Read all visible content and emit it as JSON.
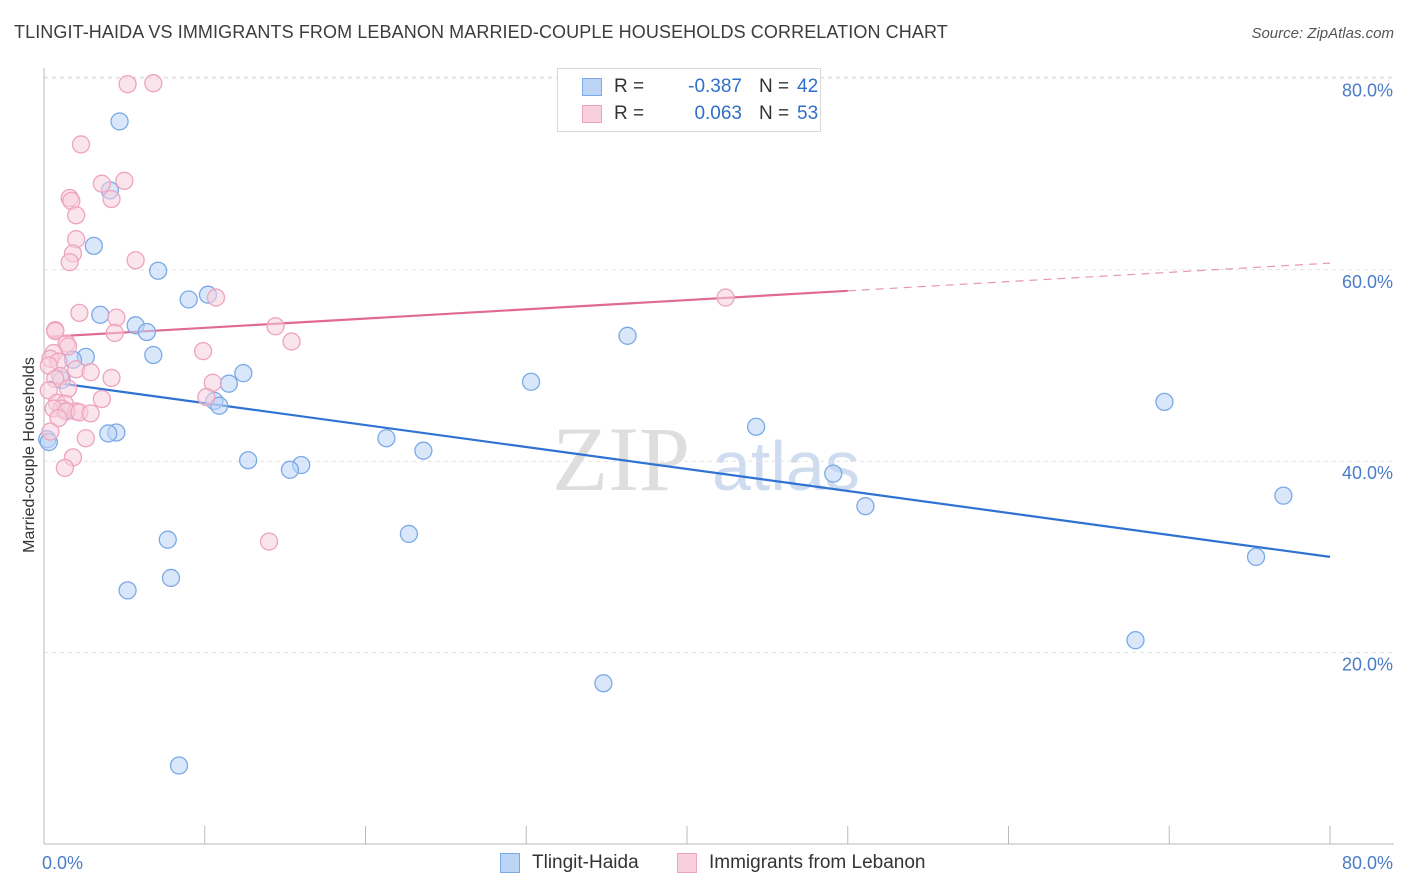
{
  "chart_data": {
    "type": "scatter",
    "title": "TLINGIT-HAIDA VS IMMIGRANTS FROM LEBANON MARRIED-COUPLE HOUSEHOLDS CORRELATION CHART",
    "source": "Source: ZipAtlas.com",
    "ylabel": "Married-couple Households",
    "xlim": [
      0,
      80
    ],
    "ylim": [
      0,
      83
    ],
    "x_tick_labels": [
      {
        "value": 0,
        "label": "0.0%"
      },
      {
        "value": 80,
        "label": "80.0%"
      }
    ],
    "y_tick_labels": [
      {
        "value": 20,
        "label": "20.0%"
      },
      {
        "value": 40,
        "label": "40.0%"
      },
      {
        "value": 60,
        "label": "60.0%"
      },
      {
        "value": 80,
        "label": "80.0%"
      }
    ],
    "watermark": {
      "zip": "ZIP",
      "atlas": "atlas"
    },
    "legend": {
      "r_label": "R =",
      "n_label": "N =",
      "entries": [
        {
          "name": "Tlingit-Haida",
          "r": "-0.387",
          "n": "42"
        },
        {
          "name": "Immigrants from Lebanon",
          "r": "0.063",
          "n": "53"
        }
      ]
    },
    "series": [
      {
        "name": "Tlingit-Haida",
        "color": "#7aaae6",
        "fill": "#bcd4f5",
        "line_color": "#2f72d4",
        "trend": {
          "x0": 0.3,
          "y0": 48.3,
          "x1": 80,
          "y1": 30.0,
          "solid_until": 80
        },
        "points": [
          [
            4.7,
            75.5
          ],
          [
            4.1,
            68.3
          ],
          [
            3.1,
            62.5
          ],
          [
            7.1,
            59.9
          ],
          [
            10.2,
            57.4
          ],
          [
            9.0,
            56.9
          ],
          [
            3.5,
            55.3
          ],
          [
            5.7,
            54.2
          ],
          [
            6.4,
            53.5
          ],
          [
            36.3,
            53.1
          ],
          [
            6.8,
            51.1
          ],
          [
            2.6,
            50.9
          ],
          [
            1.8,
            50.6
          ],
          [
            12.4,
            49.2
          ],
          [
            1.1,
            48.5
          ],
          [
            30.3,
            48.3
          ],
          [
            11.5,
            48.1
          ],
          [
            10.6,
            46.3
          ],
          [
            10.9,
            45.8
          ],
          [
            1.3,
            45.3
          ],
          [
            69.7,
            46.2
          ],
          [
            44.3,
            43.6
          ],
          [
            4.5,
            43.0
          ],
          [
            4.0,
            42.9
          ],
          [
            21.3,
            42.4
          ],
          [
            23.6,
            41.1
          ],
          [
            12.7,
            40.1
          ],
          [
            16.0,
            39.6
          ],
          [
            15.3,
            39.1
          ],
          [
            49.1,
            38.7
          ],
          [
            51.1,
            35.3
          ],
          [
            77.1,
            36.4
          ],
          [
            22.7,
            32.4
          ],
          [
            7.7,
            31.8
          ],
          [
            75.4,
            30.0
          ],
          [
            7.9,
            27.8
          ],
          [
            5.2,
            26.5
          ],
          [
            67.9,
            21.3
          ],
          [
            34.8,
            16.8
          ],
          [
            8.4,
            8.2
          ],
          [
            0.2,
            42.3
          ],
          [
            0.3,
            42.0
          ]
        ]
      },
      {
        "name": "Immigrants from Lebanon",
        "color": "#eea3bf",
        "fill": "#f8cfdd",
        "line_color": "#e06a92",
        "trend": {
          "x0": 0.3,
          "y0": 53.0,
          "x1": 80,
          "y1": 60.7,
          "solid_until": 50
        },
        "points": [
          [
            5.2,
            79.4
          ],
          [
            6.8,
            79.5
          ],
          [
            2.3,
            73.1
          ],
          [
            5.0,
            69.3
          ],
          [
            3.6,
            69.0
          ],
          [
            1.6,
            67.5
          ],
          [
            1.7,
            67.2
          ],
          [
            4.2,
            67.4
          ],
          [
            2.0,
            65.7
          ],
          [
            2.0,
            63.2
          ],
          [
            1.8,
            61.7
          ],
          [
            1.6,
            60.8
          ],
          [
            5.7,
            61.0
          ],
          [
            10.7,
            57.1
          ],
          [
            42.4,
            57.1
          ],
          [
            2.2,
            55.5
          ],
          [
            4.5,
            55.0
          ],
          [
            14.4,
            54.1
          ],
          [
            0.7,
            53.7
          ],
          [
            4.4,
            53.4
          ],
          [
            15.4,
            52.5
          ],
          [
            1.4,
            52.3
          ],
          [
            1.5,
            52.0
          ],
          [
            9.9,
            51.5
          ],
          [
            0.6,
            51.3
          ],
          [
            0.4,
            50.7
          ],
          [
            0.9,
            50.4
          ],
          [
            0.3,
            50.0
          ],
          [
            2.0,
            49.6
          ],
          [
            2.9,
            49.3
          ],
          [
            1.0,
            48.9
          ],
          [
            0.7,
            48.6
          ],
          [
            4.2,
            48.7
          ],
          [
            10.5,
            48.2
          ],
          [
            1.5,
            47.6
          ],
          [
            0.3,
            47.4
          ],
          [
            10.1,
            46.7
          ],
          [
            3.6,
            46.5
          ],
          [
            0.8,
            46.1
          ],
          [
            1.3,
            46.0
          ],
          [
            1.1,
            45.5
          ],
          [
            0.6,
            45.5
          ],
          [
            2.0,
            45.2
          ],
          [
            1.4,
            45.2
          ],
          [
            2.2,
            45.1
          ],
          [
            2.9,
            45.0
          ],
          [
            0.9,
            44.5
          ],
          [
            0.4,
            43.1
          ],
          [
            2.6,
            42.4
          ],
          [
            1.8,
            40.4
          ],
          [
            1.3,
            39.3
          ],
          [
            14.0,
            31.6
          ],
          [
            0.7,
            53.6
          ]
        ]
      }
    ]
  }
}
